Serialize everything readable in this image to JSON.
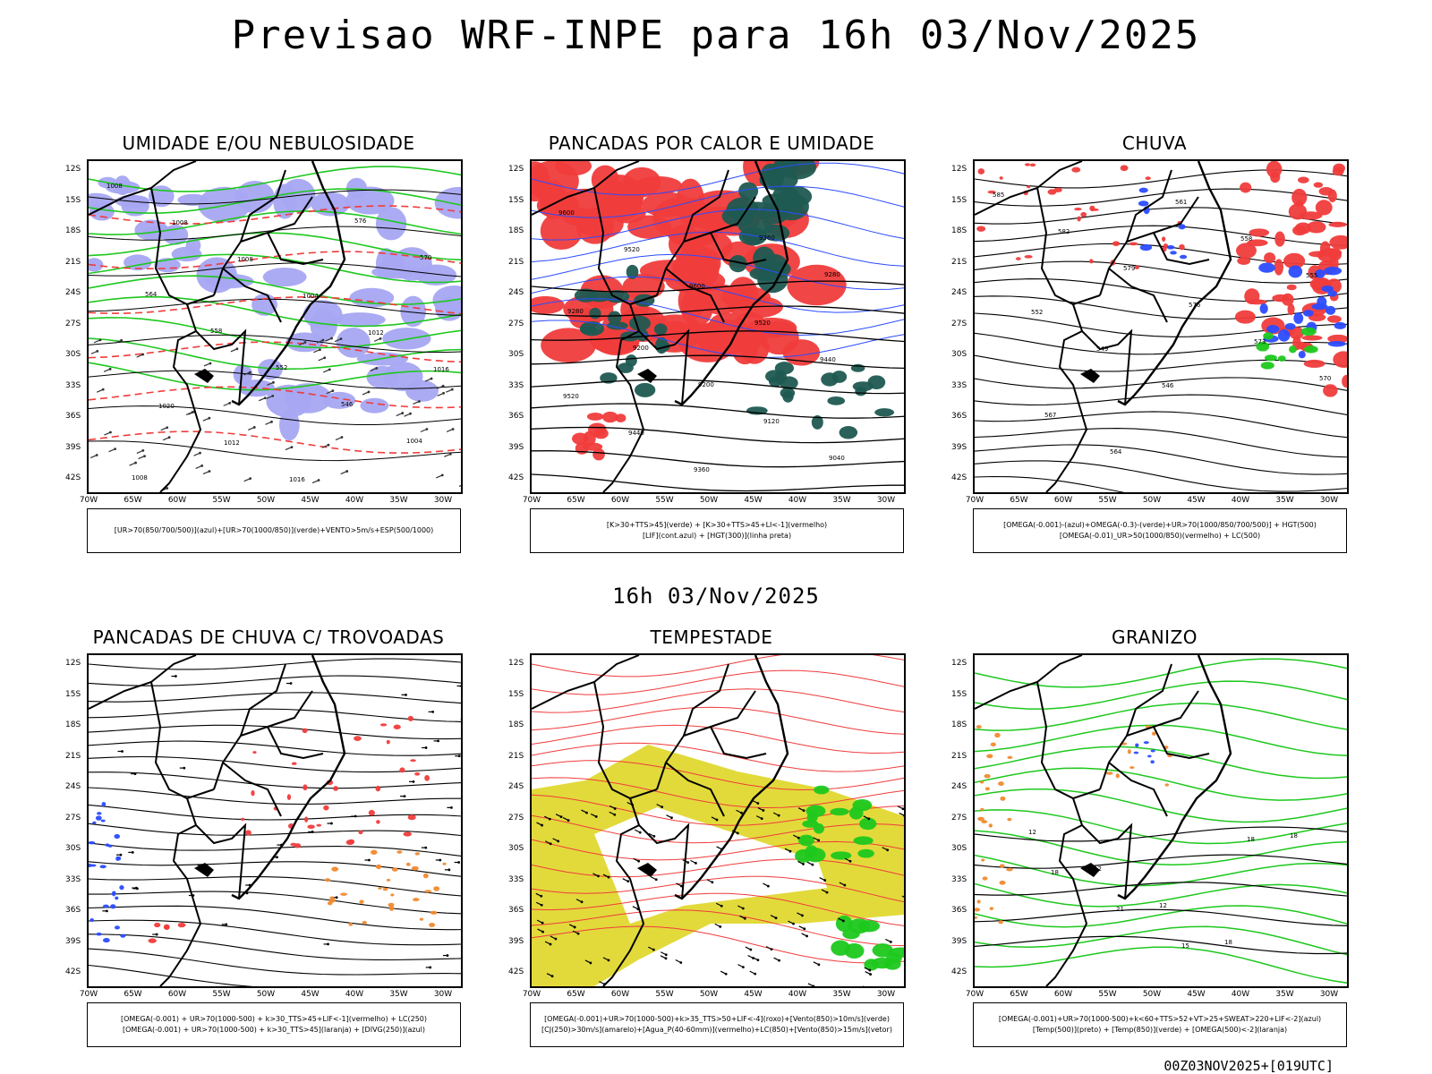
{
  "title": "Previsao WRF-INPE  para 16h 03/Nov/2025",
  "mid_title": "16h 03/Nov/2025",
  "footer": "00Z03NOV2025+[019UTC]",
  "lat_labels": [
    "12S",
    "15S",
    "18S",
    "21S",
    "24S",
    "27S",
    "30S",
    "33S",
    "36S",
    "39S",
    "42S"
  ],
  "lon_labels": [
    "70W",
    "65W",
    "60W",
    "55W",
    "50W",
    "45W",
    "40W",
    "35W",
    "30W"
  ],
  "colors": {
    "blue": "#2b4cff",
    "green": "#1ec81e",
    "red": "#f03c3c",
    "lavender": "#a7a7f2",
    "darkteal": "#1f5a52",
    "yellow": "#e0d830",
    "orange": "#f08a30"
  },
  "panels": [
    {
      "title": "UMIDADE E/OU NEBULOSIDADE",
      "legend": [
        "[UR>70(850/700/500)](azul)+[UR>70(1000/850)](verde)+VENTO>5m/s+ESP(500/1000)"
      ],
      "labels": [
        "1008",
        "1008",
        "1008",
        "1004",
        "1012",
        "1016",
        "1020",
        "1012",
        "1016",
        "576",
        "570",
        "564",
        "558",
        "552",
        "546",
        "1004",
        "1008"
      ]
    },
    {
      "title": "PANCADAS POR CALOR E UMIDADE",
      "legend": [
        "[K>30+TTS>45](verde) + [K>30+TTS>45+LI<-1](vermelho)",
        "[LIF](cont.azul) + [HGT(300)](linha preta)"
      ],
      "labels": [
        "9600",
        "9520",
        "9600",
        "9520",
        "9440",
        "9520",
        "9440",
        "9360",
        "9360",
        "9280",
        "9280",
        "9200",
        "9200",
        "9120",
        "9040"
      ]
    },
    {
      "title": "CHUVA",
      "legend": [
        "[OMEGA(-0.001)-(azul)+OMEGA(-0.3)-(verde)+UR>70(1000/850/700/500)] + HGT(500)",
        "[OMEGA(-0.01)_UR>50(1000/850)(vermelho) + LC(500)"
      ],
      "labels": [
        "585",
        "582",
        "579",
        "576",
        "573",
        "570",
        "567",
        "564",
        "561",
        "558",
        "555",
        "552",
        "549",
        "546"
      ]
    },
    {
      "title": "PANCADAS DE CHUVA C/ TROVOADAS",
      "legend": [
        "[OMEGA(-0.001) + UR>70(1000-500) + k>30_TTS>45+LIF<-1](vermelho) + LC(250)",
        "[OMEGA(-0.001) + UR>70(1000-500) + k>30_TTS>45](laranja) + [DIVG(250)](azul)"
      ],
      "labels": []
    },
    {
      "title": "TEMPESTADE",
      "legend": [
        "[OMEGA(-0.001)+UR>70(1000-500)+k>35_TTS>50+LIF<-4](roxo)+[Vento(850)>10m/s](verde)",
        "[CJ(250)>30m/s](amarelo)+[Agua_P(40-60mm)](vermelho)+LC(850)+[Vento(850)>15m/s](vetor)"
      ],
      "labels": []
    },
    {
      "title": "GRANIZO",
      "legend": [
        "[OMEGA(-0.001)+UR>70(1000-500)+k<60+TTS>52+VT>25+SWEAT>220+LIF<-2](azul)",
        "[Temp(500)](preto) + [Temp(850)](verde) + [OMEGA(500)<-2](laranja)"
      ],
      "labels": [
        "12",
        "12",
        "12",
        "18",
        "18",
        "18",
        "21",
        "15",
        "18"
      ]
    }
  ]
}
